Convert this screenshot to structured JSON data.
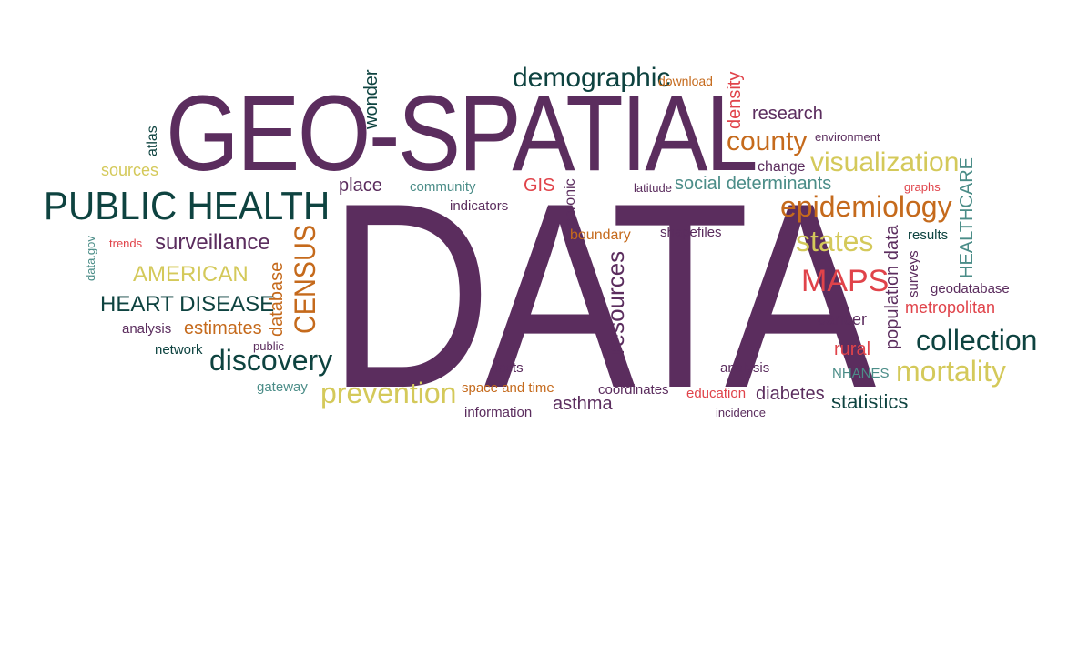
{
  "colors": {
    "purple": "#5b2d5e",
    "dark_green": "#0e4340",
    "orange": "#c56a1c",
    "yellow": "#d4c95a",
    "teal": "#4b8d88",
    "red": "#e0434a"
  },
  "words": {
    "geo_spatial": "GEO-SPATIAL",
    "data": "DATA",
    "public_health": "PUBLIC HEALTH",
    "demographic": "demographic",
    "download": "download",
    "density": "density",
    "research": "research",
    "county": "county",
    "environment": "environment",
    "change": "change",
    "visualization": "visualization",
    "wonder": "wonder",
    "atlas": "atlas",
    "sources": "sources",
    "place": "place",
    "community": "community",
    "gis": "GIS",
    "chronic": "chronic",
    "latitude": "latitude",
    "social_determinants": "social determinants",
    "graphs": "graphs",
    "healthcare": "HEALTHCARE",
    "epidemiology": "epidemiology",
    "indicators": "indicators",
    "boundary": "boundary",
    "shapefiles": "shapefiles",
    "states": "states",
    "population_data": "population data",
    "results": "results",
    "data_gov": "data.gov",
    "trends": "trends",
    "surveillance": "surveillance",
    "census": "CENSUS",
    "american": "AMERICAN",
    "database": "database",
    "resources": "resources",
    "maps": "MAPS",
    "surveys": "surveys",
    "geodatabase": "geodatabase",
    "heart_disease": "HEART DISEASE",
    "metropolitan": "metropolitan",
    "analysis_left": "analysis",
    "estimates": "estimates",
    "cancer": "cancer",
    "collection": "collection",
    "network": "network",
    "public": "public",
    "discovery": "discovery",
    "rural": "rural",
    "facts": "facts",
    "analysis_right": "analysis",
    "nhanes": "NHANES",
    "mortality": "mortality",
    "gateway": "gateway",
    "prevention": "prevention",
    "space_and_time": "space and time",
    "coordinates": "coordinates",
    "education": "education",
    "diabetes": "diabetes",
    "statistics": "statistics",
    "asthma": "asthma",
    "information": "information",
    "incidence": "incidence"
  }
}
